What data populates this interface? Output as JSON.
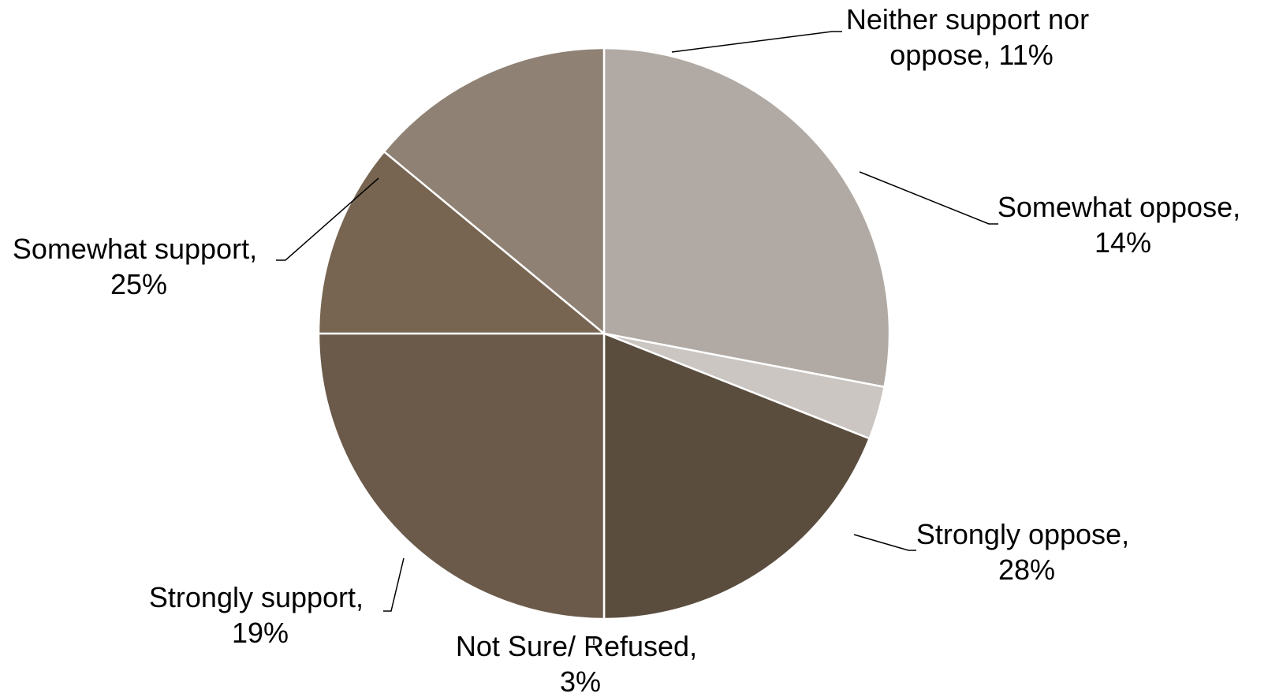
{
  "chart_data": {
    "type": "pie",
    "title": "",
    "slices": [
      {
        "name": "Strongly oppose",
        "value": 28,
        "line1": "Strongly oppose,",
        "line2": "28%",
        "color": "#B1AAA4"
      },
      {
        "name": "Not Sure/ Refused",
        "value": 3,
        "line1": "Not Sure/ Refused,",
        "line2": "3%",
        "color": "#CBC6C2"
      },
      {
        "name": "Strongly support",
        "value": 19,
        "line1": "Strongly support,",
        "line2": "19%",
        "color": "#5A4D3E"
      },
      {
        "name": "Somewhat support",
        "value": 25,
        "line1": "Somewhat support,",
        "line2": "25%",
        "color": "#6B5A4A"
      },
      {
        "name": "Neither support nor oppose",
        "value": 11,
        "line1": "Neither support nor",
        "line2": "oppose, 11%",
        "color": "#776552"
      },
      {
        "name": "Somewhat oppose",
        "value": 14,
        "line1": "Somewhat oppose,",
        "line2": "14%",
        "color": "#8F8275"
      }
    ]
  }
}
